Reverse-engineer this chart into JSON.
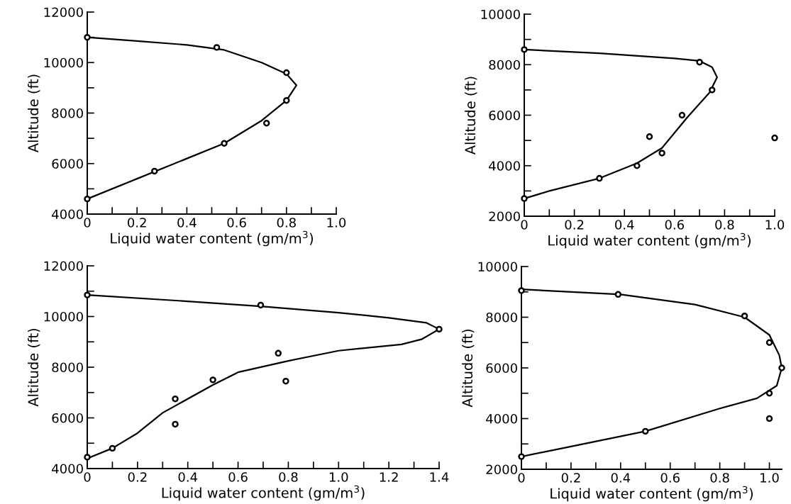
{
  "chart_data": [
    {
      "type": "scatter",
      "xlabel": "Liquid water content (gm/m$^{3}$)",
      "ylabel": "Altitude (ft)",
      "xlim": [
        0,
        1.0
      ],
      "ylim": [
        4000,
        12000
      ],
      "xticks": [
        0,
        {
          "value": 0.1,
          "label": null
        },
        0.2,
        {
          "value": 0.3,
          "label": null
        },
        0.4,
        {
          "value": 0.5,
          "label": null
        },
        0.6,
        {
          "value": 0.7,
          "label": null
        },
        0.8,
        {
          "value": 0.9,
          "label": null
        },
        {
          "value": 1.0,
          "label": "1.0"
        }
      ],
      "yticks": [
        4000,
        {
          "value": 5000,
          "label": null
        },
        6000,
        {
          "value": 7000,
          "label": null
        },
        8000,
        {
          "value": 9000,
          "label": null
        },
        10000,
        {
          "value": 11000,
          "label": null
        },
        12000
      ],
      "grid": false,
      "marker": "circle",
      "series": [
        {
          "color": "#000000",
          "x": [
            0,
            0.52,
            0.8,
            0.8,
            0.72,
            0.55,
            0.27,
            0
          ],
          "values": [
            11000,
            10600,
            9600,
            8500,
            7600,
            6800,
            5700,
            4600
          ]
        },
        {
          "type": "line",
          "marker": "none",
          "color": "#000000",
          "x": [
            0,
            0.2,
            0.4,
            0.55,
            0.7,
            0.8,
            0.84,
            0.8,
            0.7,
            0.55,
            0.4,
            0.2,
            0
          ],
          "values": [
            11000,
            10850,
            10700,
            10500,
            10000,
            9550,
            9100,
            8500,
            7700,
            6800,
            6200,
            5400,
            4600
          ]
        }
      ]
    },
    {
      "type": "scatter",
      "xlabel": "Liquid water content (gm/m$^{3}$)",
      "ylabel": "Altitude (ft)",
      "xlim": [
        0,
        1.0
      ],
      "ylim": [
        2000,
        10000
      ],
      "xticks": [
        0,
        {
          "value": 0.1,
          "label": null
        },
        0.2,
        {
          "value": 0.3,
          "label": null
        },
        0.4,
        {
          "value": 0.5,
          "label": null
        },
        0.6,
        {
          "value": 0.7,
          "label": null
        },
        0.8,
        {
          "value": 0.9,
          "label": null
        },
        {
          "value": 1.0,
          "label": "1.0"
        }
      ],
      "yticks": [
        2000,
        {
          "value": 3000,
          "label": null
        },
        4000,
        {
          "value": 5000,
          "label": null
        },
        6000,
        {
          "value": 7000,
          "label": null
        },
        8000,
        {
          "value": 9000,
          "label": null
        },
        10000
      ],
      "grid": false,
      "marker": "circle",
      "series": [
        {
          "color": "#000000",
          "x": [
            0,
            0.7,
            0.75,
            0.63,
            0.5,
            0.55,
            0.45,
            0.3,
            0,
            1.0
          ],
          "values": [
            8600,
            8100,
            7000,
            6000,
            5150,
            4500,
            4000,
            3500,
            2700,
            5100
          ]
        },
        {
          "type": "line",
          "marker": "none",
          "color": "#000000",
          "x": [
            0,
            0.3,
            0.6,
            0.7,
            0.75,
            0.77,
            0.74,
            0.65,
            0.55,
            0.45,
            0.3,
            0.1,
            0
          ],
          "values": [
            8600,
            8450,
            8250,
            8150,
            7900,
            7500,
            6900,
            5900,
            4700,
            4100,
            3500,
            3000,
            2700
          ]
        }
      ]
    },
    {
      "type": "scatter",
      "xlabel": "Liquid water content (gm/m$^{3}$)",
      "ylabel": "Altitude (ft)",
      "xlim": [
        0,
        1.4
      ],
      "ylim": [
        4000,
        12000
      ],
      "xticks": [
        0,
        {
          "value": 0.1,
          "label": null
        },
        0.2,
        {
          "value": 0.3,
          "label": null
        },
        0.4,
        {
          "value": 0.5,
          "label": null
        },
        0.6,
        {
          "value": 0.7,
          "label": null
        },
        0.8,
        {
          "value": 0.9,
          "label": null
        },
        {
          "value": 1.0,
          "label": "1.0"
        },
        {
          "value": 1.1,
          "label": null
        },
        1.2,
        {
          "value": 1.3,
          "label": null
        },
        1.4
      ],
      "yticks": [
        4000,
        {
          "value": 5000,
          "label": null
        },
        6000,
        {
          "value": 7000,
          "label": null
        },
        8000,
        {
          "value": 9000,
          "label": null
        },
        10000,
        {
          "value": 11000,
          "label": null
        },
        12000
      ],
      "grid": false,
      "marker": "circle",
      "series": [
        {
          "color": "#000000",
          "x": [
            0,
            0.69,
            1.4,
            0.76,
            0.79,
            0.5,
            0.35,
            0.35,
            0.1,
            0
          ],
          "values": [
            10850,
            10450,
            9500,
            8550,
            7450,
            7500,
            6750,
            5750,
            4800,
            4450
          ]
        },
        {
          "type": "line",
          "marker": "none",
          "color": "#000000",
          "x": [
            0,
            0.4,
            0.69,
            1.0,
            1.2,
            1.35,
            1.4,
            1.33,
            1.25,
            1.0,
            0.8,
            0.6,
            0.5,
            0.3,
            0.2,
            0.1,
            0
          ],
          "values": [
            10850,
            10600,
            10400,
            10150,
            9950,
            9750,
            9500,
            9100,
            8900,
            8650,
            8250,
            7800,
            7300,
            6200,
            5400,
            4800,
            4400
          ]
        }
      ]
    },
    {
      "type": "scatter",
      "xlabel": "Liquid water content (gm/m$^{3}$)",
      "ylabel": "Altitude (ft)",
      "xlim": [
        0,
        1.05
      ],
      "ylim": [
        2000,
        10000
      ],
      "xticks": [
        0,
        {
          "value": 0.1,
          "label": null
        },
        0.2,
        {
          "value": 0.3,
          "label": null
        },
        0.4,
        {
          "value": 0.5,
          "label": null
        },
        0.6,
        {
          "value": 0.7,
          "label": null
        },
        0.8,
        {
          "value": 0.9,
          "label": null
        },
        {
          "value": 1.0,
          "label": "1.0"
        }
      ],
      "yticks": [
        2000,
        {
          "value": 3000,
          "label": null
        },
        4000,
        {
          "value": 5000,
          "label": null
        },
        6000,
        {
          "value": 7000,
          "label": null
        },
        8000,
        {
          "value": 9000,
          "label": null
        },
        10000
      ],
      "grid": false,
      "marker": "circle",
      "series": [
        {
          "color": "#000000",
          "x": [
            0,
            0.39,
            0.9,
            1.0,
            1.05,
            1.0,
            1.0,
            0.5,
            0
          ],
          "values": [
            9050,
            8900,
            8050,
            7000,
            6000,
            5000,
            4000,
            3500,
            2500
          ]
        },
        {
          "type": "line",
          "marker": "none",
          "color": "#000000",
          "x": [
            0,
            0.4,
            0.7,
            0.9,
            1.0,
            1.04,
            1.05,
            1.03,
            0.95,
            0.8,
            0.5,
            0.2,
            0
          ],
          "values": [
            9100,
            8900,
            8500,
            8000,
            7300,
            6500,
            6000,
            5300,
            4800,
            4400,
            3500,
            2900,
            2500
          ]
        }
      ]
    }
  ]
}
